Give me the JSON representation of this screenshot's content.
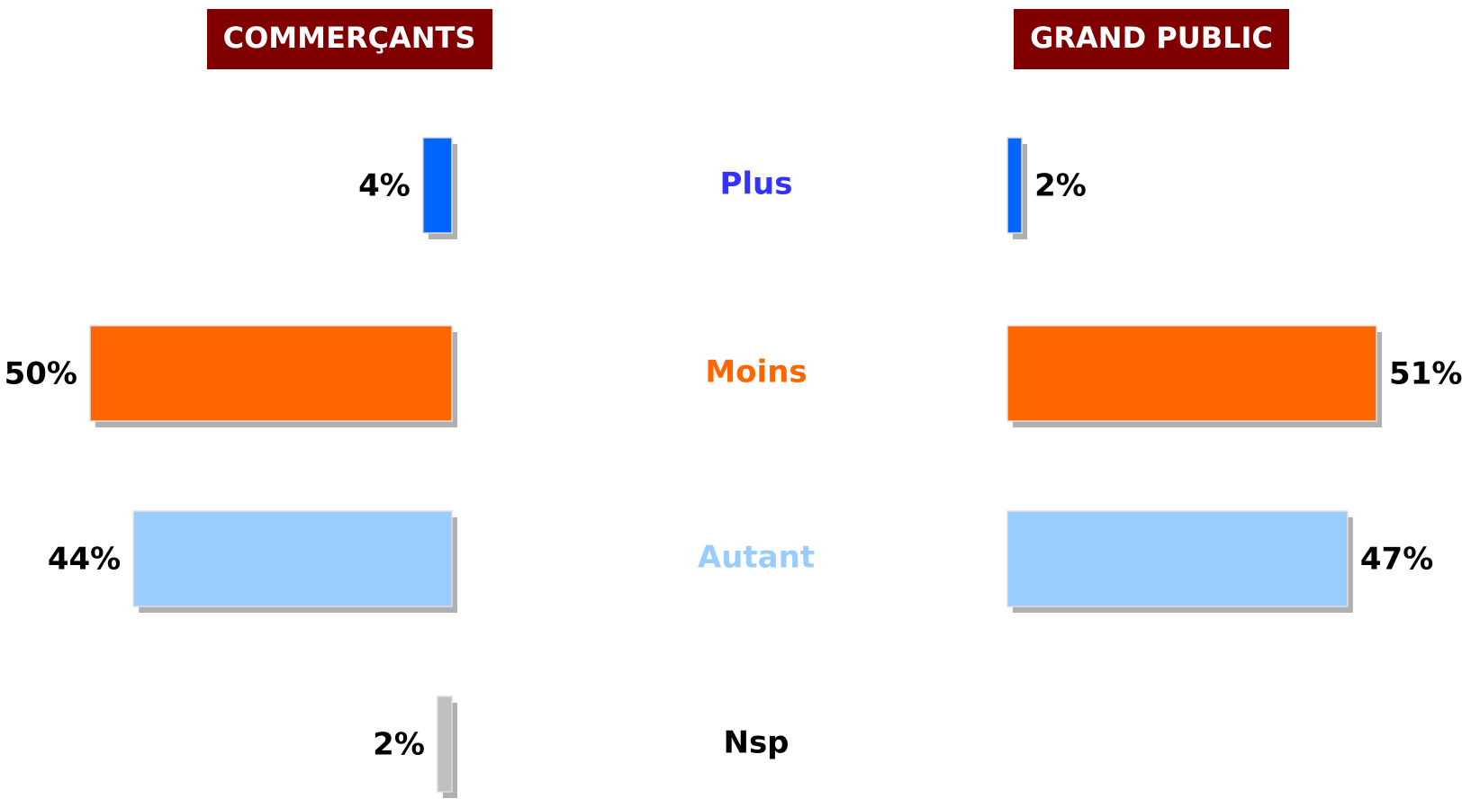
{
  "chart_data": {
    "type": "butterfly-bar",
    "categories": [
      "Plus",
      "Moins",
      "Autant",
      "Nsp"
    ],
    "category_colors": [
      "#3333ff",
      "#ff6600",
      "#99ccff",
      "#000000"
    ],
    "bar_colors": [
      "#0066ff",
      "#ff6600",
      "#99ccff",
      "#c0c0c0"
    ],
    "series": [
      {
        "name": "COMMERÇANTS",
        "values": [
          4,
          50,
          44,
          2
        ],
        "value_labels": [
          "4%",
          "50%",
          "44%",
          "2%"
        ]
      },
      {
        "name": "GRAND PUBLIC",
        "values": [
          2,
          51,
          47,
          null
        ],
        "value_labels": [
          "2%",
          "51%",
          "47%",
          null
        ]
      }
    ]
  }
}
